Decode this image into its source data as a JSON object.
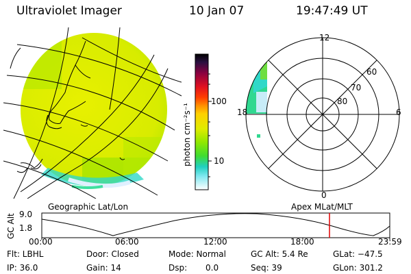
{
  "header": {
    "title": "Ultraviolet Imager",
    "date": "10 Jan 07",
    "time": "19:47:49 UT"
  },
  "colorbar": {
    "unit_label": "photon cm⁻²s⁻¹",
    "ticks": [
      "100",
      "10"
    ]
  },
  "polar": {
    "mlt_labels": {
      "top": "12",
      "left": "18",
      "right": "6",
      "bottom": "0"
    },
    "lat_labels": [
      "60",
      "70",
      "80"
    ]
  },
  "footer": {
    "left_caption": "Geographic Lat/Lon",
    "right_caption": "Apex  MLat/MLT",
    "y_label": "GC Alt",
    "y_max": "9.0",
    "y_min": "1.8",
    "time_ticks": [
      "00:00",
      "06:00",
      "12:00",
      "18:00",
      "23:59"
    ]
  },
  "info": {
    "flt": "Flt: LBHL",
    "ip": "IP: 36.0",
    "door": "Door: Closed",
    "gain": "Gain: 14",
    "mode": "Mode: Normal",
    "dsp_label": "Dsp:",
    "dsp_value": "0.0",
    "gcalt": "GC Alt: 5.4 Re",
    "seq": "Seq: 39",
    "glat": "GLat: −47.5",
    "glon": "GLon: 301.2"
  },
  "colors": {
    "disk_main": "#e4ee00",
    "disk_green": "#88e800",
    "disk_cyan": "#30d8c8",
    "marker_red": "#e00000"
  }
}
